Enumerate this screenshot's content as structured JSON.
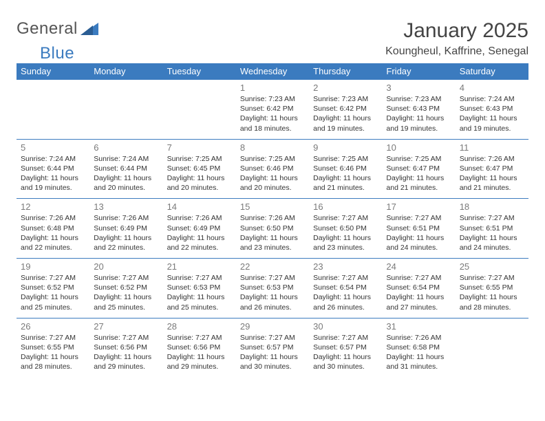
{
  "logo": {
    "general": "General",
    "blue": "Blue"
  },
  "title": "January 2025",
  "location": "Koungheul, Kaffrine, Senegal",
  "colors": {
    "header_bg": "#3b7bbf",
    "header_fg": "#ffffff",
    "row_border": "#3b7bbf",
    "daynum": "#7a7a7a",
    "body_text": "#333333",
    "logo_grey": "#555555",
    "logo_blue": "#3b7bbf",
    "background": "#ffffff"
  },
  "weekdays": [
    "Sunday",
    "Monday",
    "Tuesday",
    "Wednesday",
    "Thursday",
    "Friday",
    "Saturday"
  ],
  "weeks": [
    [
      null,
      null,
      null,
      {
        "d": "1",
        "sr": "7:23 AM",
        "ss": "6:42 PM",
        "dl": "11 hours and 18 minutes."
      },
      {
        "d": "2",
        "sr": "7:23 AM",
        "ss": "6:42 PM",
        "dl": "11 hours and 19 minutes."
      },
      {
        "d": "3",
        "sr": "7:23 AM",
        "ss": "6:43 PM",
        "dl": "11 hours and 19 minutes."
      },
      {
        "d": "4",
        "sr": "7:24 AM",
        "ss": "6:43 PM",
        "dl": "11 hours and 19 minutes."
      }
    ],
    [
      {
        "d": "5",
        "sr": "7:24 AM",
        "ss": "6:44 PM",
        "dl": "11 hours and 19 minutes."
      },
      {
        "d": "6",
        "sr": "7:24 AM",
        "ss": "6:44 PM",
        "dl": "11 hours and 20 minutes."
      },
      {
        "d": "7",
        "sr": "7:25 AM",
        "ss": "6:45 PM",
        "dl": "11 hours and 20 minutes."
      },
      {
        "d": "8",
        "sr": "7:25 AM",
        "ss": "6:46 PM",
        "dl": "11 hours and 20 minutes."
      },
      {
        "d": "9",
        "sr": "7:25 AM",
        "ss": "6:46 PM",
        "dl": "11 hours and 21 minutes."
      },
      {
        "d": "10",
        "sr": "7:25 AM",
        "ss": "6:47 PM",
        "dl": "11 hours and 21 minutes."
      },
      {
        "d": "11",
        "sr": "7:26 AM",
        "ss": "6:47 PM",
        "dl": "11 hours and 21 minutes."
      }
    ],
    [
      {
        "d": "12",
        "sr": "7:26 AM",
        "ss": "6:48 PM",
        "dl": "11 hours and 22 minutes."
      },
      {
        "d": "13",
        "sr": "7:26 AM",
        "ss": "6:49 PM",
        "dl": "11 hours and 22 minutes."
      },
      {
        "d": "14",
        "sr": "7:26 AM",
        "ss": "6:49 PM",
        "dl": "11 hours and 22 minutes."
      },
      {
        "d": "15",
        "sr": "7:26 AM",
        "ss": "6:50 PM",
        "dl": "11 hours and 23 minutes."
      },
      {
        "d": "16",
        "sr": "7:27 AM",
        "ss": "6:50 PM",
        "dl": "11 hours and 23 minutes."
      },
      {
        "d": "17",
        "sr": "7:27 AM",
        "ss": "6:51 PM",
        "dl": "11 hours and 24 minutes."
      },
      {
        "d": "18",
        "sr": "7:27 AM",
        "ss": "6:51 PM",
        "dl": "11 hours and 24 minutes."
      }
    ],
    [
      {
        "d": "19",
        "sr": "7:27 AM",
        "ss": "6:52 PM",
        "dl": "11 hours and 25 minutes."
      },
      {
        "d": "20",
        "sr": "7:27 AM",
        "ss": "6:52 PM",
        "dl": "11 hours and 25 minutes."
      },
      {
        "d": "21",
        "sr": "7:27 AM",
        "ss": "6:53 PM",
        "dl": "11 hours and 25 minutes."
      },
      {
        "d": "22",
        "sr": "7:27 AM",
        "ss": "6:53 PM",
        "dl": "11 hours and 26 minutes."
      },
      {
        "d": "23",
        "sr": "7:27 AM",
        "ss": "6:54 PM",
        "dl": "11 hours and 26 minutes."
      },
      {
        "d": "24",
        "sr": "7:27 AM",
        "ss": "6:54 PM",
        "dl": "11 hours and 27 minutes."
      },
      {
        "d": "25",
        "sr": "7:27 AM",
        "ss": "6:55 PM",
        "dl": "11 hours and 28 minutes."
      }
    ],
    [
      {
        "d": "26",
        "sr": "7:27 AM",
        "ss": "6:55 PM",
        "dl": "11 hours and 28 minutes."
      },
      {
        "d": "27",
        "sr": "7:27 AM",
        "ss": "6:56 PM",
        "dl": "11 hours and 29 minutes."
      },
      {
        "d": "28",
        "sr": "7:27 AM",
        "ss": "6:56 PM",
        "dl": "11 hours and 29 minutes."
      },
      {
        "d": "29",
        "sr": "7:27 AM",
        "ss": "6:57 PM",
        "dl": "11 hours and 30 minutes."
      },
      {
        "d": "30",
        "sr": "7:27 AM",
        "ss": "6:57 PM",
        "dl": "11 hours and 30 minutes."
      },
      {
        "d": "31",
        "sr": "7:26 AM",
        "ss": "6:58 PM",
        "dl": "11 hours and 31 minutes."
      },
      null
    ]
  ],
  "labels": {
    "sunrise": "Sunrise:",
    "sunset": "Sunset:",
    "daylight": "Daylight:"
  }
}
